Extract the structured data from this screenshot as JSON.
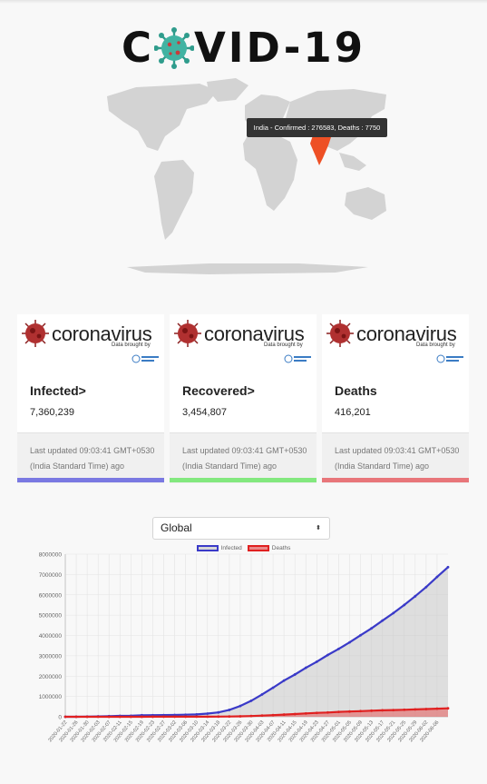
{
  "logo": {
    "text_left": "C",
    "text_right": "VID-19"
  },
  "map": {
    "tooltip": "India - Confirmed : 276583, Deaths : 7750",
    "colors": {
      "land": "#d3d3d3",
      "highlight": "#ee5025"
    }
  },
  "cards": [
    {
      "brand": "coronavirus",
      "brand_sub": "Data brought by",
      "title": "Infected>",
      "value": "7,360,239",
      "updated": "Last updated 09:03:41 GMT+0530 (India Standard Time) ago",
      "bar_color": "#7a79e2"
    },
    {
      "brand": "coronavirus",
      "brand_sub": "Data brought by",
      "title": "Recovered>",
      "value": "3,454,807",
      "updated": "Last updated 09:03:41 GMT+0530 (India Standard Time) ago",
      "bar_color": "#83e87f"
    },
    {
      "brand": "coronavirus",
      "brand_sub": "Data brought by",
      "title": "Deaths",
      "value": "416,201",
      "updated": "Last updated 09:03:41 GMT+0530 (India Standard Time) ago",
      "bar_color": "#e8767a"
    }
  ],
  "region_select": {
    "value": "Global",
    "arrow": "⬍"
  },
  "chart_data": {
    "type": "line",
    "series": [
      {
        "name": "Infected",
        "color": "#3a3ac8",
        "fill": "rgba(200,200,200,0.55)"
      },
      {
        "name": "Deaths",
        "color": "#e02020",
        "fill": "rgba(230,90,90,0.55)"
      }
    ],
    "ylim": [
      0,
      8000000
    ],
    "yticks": [
      "0",
      "1000000",
      "2000000",
      "3000000",
      "4000000",
      "5000000",
      "6000000",
      "7000000",
      "8000000"
    ],
    "x": [
      "2020-01-22",
      "2020-01-26",
      "2020-01-30",
      "2020-02-03",
      "2020-02-07",
      "2020-02-11",
      "2020-02-15",
      "2020-02-19",
      "2020-02-23",
      "2020-02-27",
      "2020-03-02",
      "2020-03-06",
      "2020-03-10",
      "2020-03-14",
      "2020-03-18",
      "2020-03-22",
      "2020-03-26",
      "2020-03-30",
      "2020-04-03",
      "2020-04-07",
      "2020-04-11",
      "2020-04-15",
      "2020-04-19",
      "2020-04-23",
      "2020-04-27",
      "2020-05-01",
      "2020-05-05",
      "2020-05-09",
      "2020-05-13",
      "2020-05-17",
      "2020-05-21",
      "2020-05-25",
      "2020-05-29",
      "2020-06-02",
      "2020-06-06",
      "2020-06-10"
    ],
    "xticks": [
      "2020-01-22",
      "2020-01-26",
      "2020-01-30",
      "2020-02-03",
      "2020-02-07",
      "2020-02-11",
      "2020-02-15",
      "2020-02-19",
      "2020-02-23",
      "2020-02-27",
      "2020-03-02",
      "2020-03-06",
      "2020-03-10",
      "2020-03-14",
      "2020-03-18",
      "2020-03-22",
      "2020-03-26",
      "2020-03-30",
      "2020-04-03",
      "2020-04-07",
      "2020-04-11",
      "2020-04-15",
      "2020-04-19",
      "2020-04-23",
      "2020-04-27",
      "2020-05-01",
      "2020-05-05",
      "2020-05-09",
      "2020-05-13",
      "2020-05-17",
      "2020-05-21",
      "2020-05-25",
      "2020-05-29",
      "2020-06-02",
      "2020-06-06"
    ],
    "infected": [
      555,
      2000,
      8000,
      20000,
      31000,
      43000,
      50000,
      75000,
      79000,
      83000,
      90000,
      101000,
      118000,
      156000,
      215000,
      337000,
      530000,
      785000,
      1100000,
      1430000,
      1780000,
      2080000,
      2410000,
      2710000,
      3040000,
      3340000,
      3660000,
      4010000,
      4350000,
      4730000,
      5100000,
      5500000,
      5930000,
      6380000,
      6880000,
      7360239
    ],
    "deaths": [
      17,
      56,
      171,
      426,
      722,
      1115,
      1666,
      2122,
      2469,
      2804,
      3120,
      3460,
      4260,
      5820,
      8780,
      14630,
      23960,
      37820,
      58790,
      82070,
      108820,
      132690,
      163570,
      190460,
      210270,
      239690,
      258760,
      278890,
      298340,
      316830,
      331040,
      346090,
      362180,
      378020,
      400000,
      416201
    ],
    "grid": true,
    "legend_position": "top"
  }
}
